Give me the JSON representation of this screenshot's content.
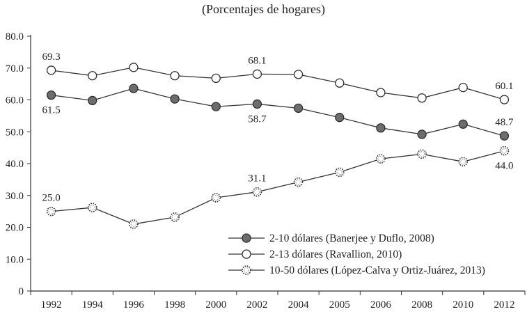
{
  "chart_data": {
    "type": "line",
    "title": "(Porcentajes de hogares)",
    "xlabel": "",
    "ylabel": "",
    "categories": [
      "1992",
      "1994",
      "1996",
      "1998",
      "2000",
      "2002",
      "2004",
      "2005",
      "2006",
      "2008",
      "2010",
      "2012"
    ],
    "y_ticks": [
      "0",
      "10.0",
      "20.0",
      "30.0",
      "40.0",
      "50.0",
      "60.0",
      "70.0",
      "80.0"
    ],
    "ylim": [
      0,
      80
    ],
    "grid": false,
    "legend_position": "bottom-right",
    "series": [
      {
        "name": "2-10 dólares (Banerjee y Duflo, 2008)",
        "marker": "filled-circle",
        "color": "#6d6d6d",
        "values": [
          61.5,
          59.8,
          63.6,
          60.3,
          57.9,
          58.7,
          57.4,
          54.5,
          51.2,
          49.2,
          52.4,
          48.7
        ]
      },
      {
        "name": "2-13 dólares (Ravallion, 2010)",
        "marker": "open-circle",
        "color": "#ffffff",
        "values": [
          69.3,
          67.6,
          70.2,
          67.6,
          66.8,
          68.1,
          68.0,
          65.3,
          62.3,
          60.6,
          63.9,
          60.1
        ]
      },
      {
        "name": "10-50 dólares (López-Calva y Ortiz-Juárez, 2013)",
        "marker": "dotted-circle",
        "color": "#ffffff",
        "values": [
          25.0,
          26.2,
          21.0,
          23.2,
          29.3,
          31.1,
          34.2,
          37.3,
          41.5,
          43.0,
          40.6,
          44.0
        ]
      }
    ],
    "annotations": [
      {
        "series": 0,
        "index": 0,
        "text": "61.5",
        "pos": "below"
      },
      {
        "series": 0,
        "index": 5,
        "text": "58.7",
        "pos": "below"
      },
      {
        "series": 0,
        "index": 11,
        "text": "48.7",
        "pos": "above"
      },
      {
        "series": 1,
        "index": 0,
        "text": "69.3",
        "pos": "above"
      },
      {
        "series": 1,
        "index": 5,
        "text": "68.1",
        "pos": "above"
      },
      {
        "series": 1,
        "index": 11,
        "text": "60.1",
        "pos": "above"
      },
      {
        "series": 2,
        "index": 0,
        "text": "25.0",
        "pos": "above"
      },
      {
        "series": 2,
        "index": 5,
        "text": "31.1",
        "pos": "above"
      },
      {
        "series": 2,
        "index": 11,
        "text": "44.0",
        "pos": "below"
      }
    ]
  }
}
